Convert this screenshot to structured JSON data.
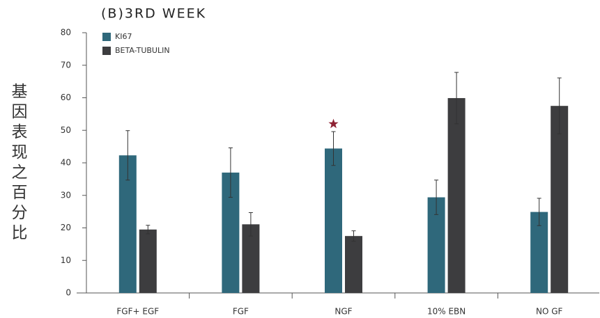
{
  "chart_data": {
    "type": "bar",
    "title": "(B)3RD WEEK",
    "ylabel": "基因表现之百分比",
    "categories": [
      "FGF+ EGF",
      "FGF",
      "NGF",
      "10% EBN",
      "NO GF"
    ],
    "series": [
      {
        "name": "KI67",
        "color": "#2f687b",
        "values": [
          42.3,
          37.0,
          44.4,
          29.4,
          24.9
        ],
        "errors": [
          7.6,
          7.6,
          5.2,
          5.3,
          4.2
        ]
      },
      {
        "name": "BETA-TUBULIN",
        "color": "#3d3d3f",
        "values": [
          19.5,
          21.1,
          17.5,
          59.9,
          57.5
        ],
        "errors": [
          1.3,
          3.6,
          1.6,
          7.9,
          8.6
        ]
      }
    ],
    "ylim": [
      0,
      80
    ],
    "yticks": [
      0,
      10,
      20,
      30,
      40,
      50,
      60,
      70,
      80
    ],
    "marker": {
      "category": "NGF",
      "series": "KI67",
      "color": "#8e2233"
    },
    "legend": "upper left"
  }
}
